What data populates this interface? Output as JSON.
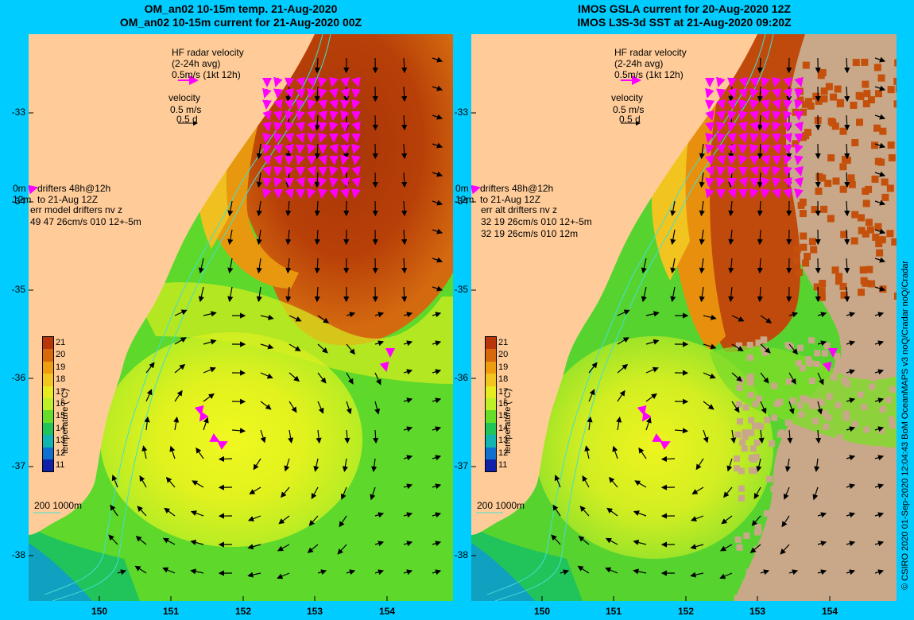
{
  "titles": {
    "left_line1": "OM_an02 10-15m temp. 21-Aug-2020",
    "left_line2": "OM_an02 10-15m current for 21-Aug-2020 00Z",
    "right_line1": "IMOS GSLA current for 20-Aug-2020 12Z",
    "right_line2": "IMOS L3S-3d SST at 21-Aug-2020 09:20Z"
  },
  "axes": {
    "lat_labels": [
      "-33",
      "-34",
      "-35",
      "-36",
      "-37",
      "-38"
    ],
    "lon_labels": [
      "150",
      "151",
      "152",
      "153",
      "154"
    ]
  },
  "legend": {
    "hf_radar_line1": "HF radar velocity",
    "hf_radar_line2": "(2-24h avg)",
    "hf_radar_line3": "0.5m/s (1kt 12h)",
    "velocity_line1": "velocity",
    "velocity_line2": "0.5 m/s",
    "velocity_line3": "0.5 d",
    "drifters_0m": "0m",
    "drifters_12m": "12m",
    "drifters_line1": "drifters 48h@12h",
    "drifters_line2": "to 21-Aug 12Z",
    "scale_label": "200  1000m"
  },
  "left_stats": {
    "header": "err model drifters nv z",
    "row1": "49 47 26cm/s 010 12+-5m"
  },
  "right_stats": {
    "header": "err alt drifters nv z",
    "row1": "32 19 26cm/s 010 12+-5m",
    "row2": "32 19 26cm/s 010 12m"
  },
  "colorbar": {
    "title": "temperature (°C)",
    "ticks": [
      "21",
      "20",
      "19",
      "18",
      "17",
      "16",
      "15",
      "14",
      "13",
      "12",
      "11"
    ],
    "colors": [
      "#b8360a",
      "#d8680c",
      "#ee9c10",
      "#f4c420",
      "#e6ec20",
      "#bef028",
      "#66dd28",
      "#20c45a",
      "#10b4b0",
      "#1070d0",
      "#1020a8"
    ]
  },
  "credit": "© CSIRO 2020  01-Sep-2020 12:04:43 BoM OceanMAPS v3 noQ/Cradar noQ/Cradar",
  "colors": {
    "background": "#00ccff",
    "land": "#ffcc99",
    "hf_radar_vector": "#ff00ff",
    "velocity_vector": "#000000",
    "isobath": "#40e0d0",
    "no_data": "#c8a888"
  }
}
